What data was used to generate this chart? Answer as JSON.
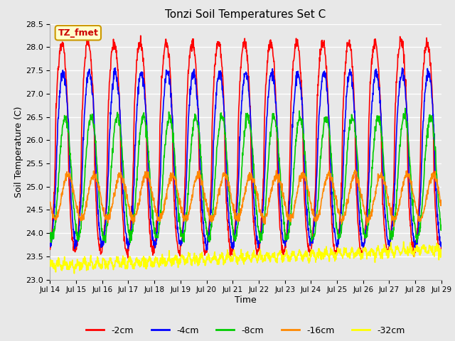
{
  "title": "Tonzi Soil Temperatures Set C",
  "xlabel": "Time",
  "ylabel": "Soil Temperature (C)",
  "ylim": [
    23.0,
    28.5
  ],
  "background_color": "#e8e8e8",
  "plot_bg_color": "#e8e8e8",
  "grid_color": "#ffffff",
  "annotation_text": "TZ_fmet",
  "annotation_bg": "#ffffcc",
  "annotation_border": "#cc9900",
  "annotation_text_color": "#cc0000",
  "xtick_labels": [
    "Jul 14",
    "Jul 15",
    "Jul 16",
    "Jul 17",
    "Jul 18",
    "Jul 19",
    "Jul 20",
    "Jul 21",
    "Jul 22",
    "Jul 23",
    "Jul 24",
    "Jul 25",
    "Jul 26",
    "Jul 27",
    "Jul 28",
    "Jul 29"
  ],
  "colors": {
    "-2cm": "#ff0000",
    "-4cm": "#0000ff",
    "-8cm": "#00cc00",
    "-16cm": "#ff8800",
    "-32cm": "#ffff00"
  },
  "line_width": 1.2,
  "n_points": 1440,
  "days": 15
}
